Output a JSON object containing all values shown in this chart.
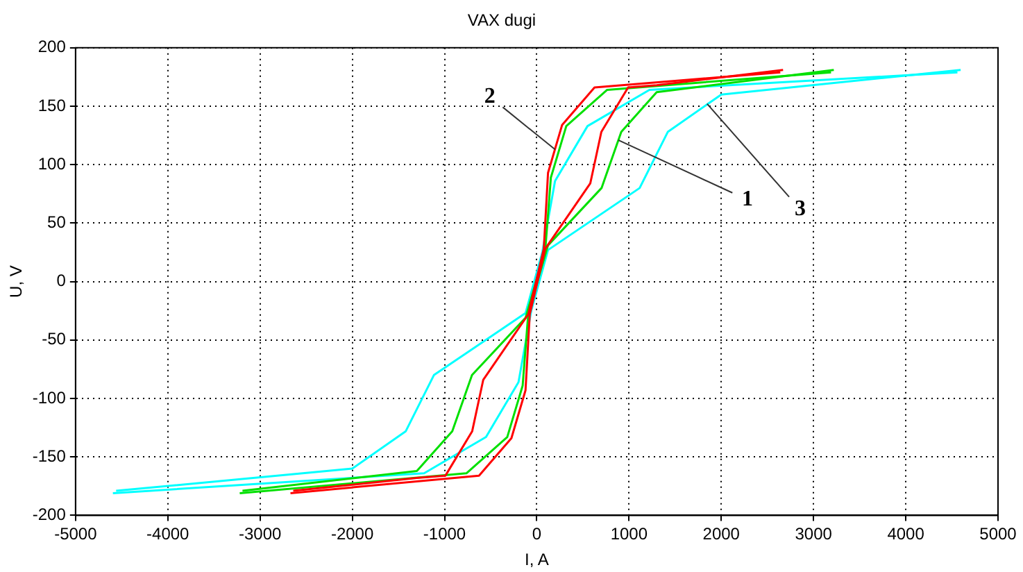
{
  "chart_data": {
    "type": "line",
    "title": "VAX dugi",
    "xlabel": "I, A",
    "ylabel": "U, V",
    "xlim": [
      -5000,
      5000
    ],
    "xticks": [
      -5000,
      -4000,
      -3000,
      -2000,
      -1000,
      0,
      1000,
      2000,
      3000,
      4000,
      5000
    ],
    "ylim": [
      -200,
      200
    ],
    "yticks": [
      -200,
      -150,
      -100,
      -50,
      0,
      50,
      100,
      150,
      200
    ],
    "grid": true,
    "marker": "none",
    "line_style": "solid",
    "series": [
      {
        "color": "#ff0000",
        "x": [
          -2670,
          -626,
          -275,
          -122,
          -76,
          92,
          580,
          700,
          990,
          1300,
          2670
        ],
        "values": [
          -181,
          -166,
          -134,
          -93,
          -28,
          28,
          84,
          128,
          166,
          168,
          181
        ]
      },
      {
        "color": "#ff0000",
        "x": [
          -2640,
          -1300,
          -990,
          -700,
          -580,
          -92,
          76,
          122,
          275,
          626,
          2640
        ],
        "values": [
          -179,
          -168,
          -166,
          -128,
          -84,
          -28,
          28,
          93,
          134,
          166,
          179
        ]
      },
      {
        "color": "#00e000",
        "x": [
          -3220,
          -763,
          -320,
          -153,
          -92,
          122,
          702,
          916,
          1300,
          3220
        ],
        "values": [
          -181,
          -164,
          -133,
          -89,
          -27,
          31,
          80,
          128,
          162,
          181
        ]
      },
      {
        "color": "#00e000",
        "x": [
          -3190,
          -1300,
          -916,
          -702,
          -122,
          92,
          153,
          320,
          763,
          3190
        ],
        "values": [
          -179,
          -162,
          -128,
          -80,
          -31,
          27,
          89,
          133,
          164,
          179
        ]
      },
      {
        "color": "#00ffff",
        "x": [
          -4595,
          -1221,
          -550,
          -198,
          -60,
          122,
          1115,
          1420,
          2000,
          4595
        ],
        "values": [
          -181,
          -164,
          -133,
          -86,
          -25,
          27,
          80,
          128,
          160,
          181
        ]
      },
      {
        "color": "#00ffff",
        "x": [
          -4560,
          -2000,
          -1420,
          -1115,
          -122,
          60,
          198,
          550,
          1221,
          4560
        ],
        "values": [
          -179,
          -160,
          -128,
          -80,
          -27,
          25,
          86,
          133,
          164,
          179
        ]
      }
    ],
    "annotations": [
      {
        "text": "2",
        "x": 198,
        "y": 113
      },
      {
        "text": "1",
        "x": 885,
        "y": 121
      },
      {
        "text": "3",
        "x": 1847,
        "y": 152
      }
    ]
  }
}
